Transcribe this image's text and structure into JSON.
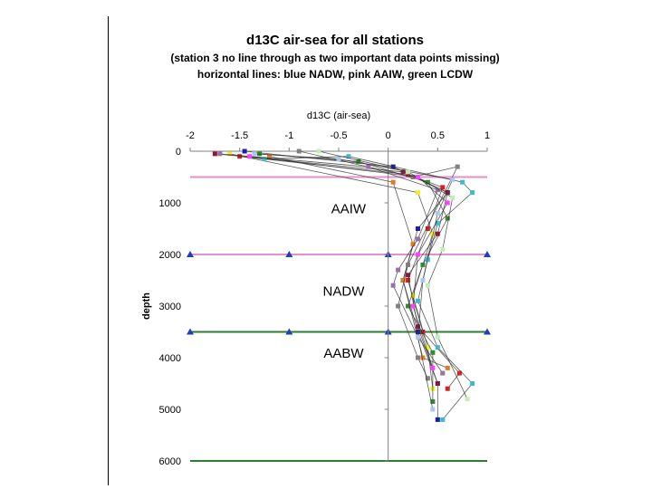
{
  "title": "d13C air-sea for all stations",
  "subtitle_1": "(station 3 no line through as two important data points missing)",
  "subtitle_2": "horizontal lines: blue  NADW, pink AAIW, green LCDW",
  "chart_data": {
    "type": "line",
    "title": "d13C air-sea for all stations",
    "xlabel": "d13C (air-sea)",
    "ylabel": "depth",
    "xlim": [
      -2,
      1
    ],
    "ylim": [
      6000,
      0
    ],
    "x_axis_position": "top",
    "y_inverted": true,
    "grid": false,
    "legend": "none",
    "x_ticks": [
      "-2",
      "-1.5",
      "-1",
      "-0.5",
      "0",
      "0.5",
      "1"
    ],
    "y_ticks": [
      "0",
      "1000",
      "2000",
      "3000",
      "4000",
      "5000",
      "6000"
    ],
    "annotations": [
      {
        "text": "AAIW",
        "x": -0.4,
        "depth": 1200
      },
      {
        "text": "NADW",
        "x": -0.45,
        "depth": 2800
      },
      {
        "text": "AABW",
        "x": -0.45,
        "depth": 4000
      }
    ],
    "reference_lines": [
      {
        "name": "AAIW",
        "depth": 500,
        "color": "#e38fd0",
        "markers": false
      },
      {
        "name": "NADW",
        "depth": 2000,
        "color": "#e38fd0",
        "markers": true,
        "marker_color": "#1f3fbf",
        "marker_x": [
          -2,
          -1,
          0,
          1
        ]
      },
      {
        "name": "LCDW",
        "depth": 3500,
        "color": "#2e7d32",
        "markers": true,
        "marker_color": "#1f3fbf",
        "marker_x": [
          -2,
          -1,
          0,
          1
        ]
      },
      {
        "name": "bottom",
        "depth": 6000,
        "color": "#2e7d32",
        "markers": false
      }
    ],
    "series": [
      {
        "color": "#1b1bb0",
        "points": [
          [
            -1.45,
            0
          ],
          [
            0.05,
            300
          ],
          [
            0.6,
            800
          ],
          [
            0.3,
            1500
          ],
          [
            0.15,
            2500
          ],
          [
            0.3,
            3500
          ],
          [
            0.5,
            4500
          ],
          [
            0.5,
            5200
          ]
        ]
      },
      {
        "color": "#d62020",
        "points": [
          [
            -1.5,
            100
          ],
          [
            0.2,
            450
          ],
          [
            0.55,
            700
          ],
          [
            0.4,
            1500
          ],
          [
            0.2,
            2500
          ],
          [
            0.35,
            3500
          ],
          [
            0.72,
            4300
          ],
          [
            0.6,
            4600
          ]
        ]
      },
      {
        "color": "#f0f020",
        "points": [
          [
            -1.6,
            50
          ],
          [
            0.3,
            800
          ],
          [
            0.45,
            1600
          ],
          [
            0.25,
            2800
          ],
          [
            0.4,
            3800
          ],
          [
            0.45,
            4600
          ]
        ]
      },
      {
        "color": "#2e8b2e",
        "points": [
          [
            -1.3,
            50
          ],
          [
            -0.3,
            200
          ],
          [
            0.4,
            600
          ],
          [
            0.6,
            1300
          ],
          [
            0.35,
            2200
          ],
          [
            0.2,
            3000
          ],
          [
            0.45,
            3900
          ],
          [
            0.45,
            4850
          ]
        ]
      },
      {
        "color": "#e07b20",
        "points": [
          [
            -1.2,
            100
          ],
          [
            0.05,
            600
          ],
          [
            0.25,
            1800
          ],
          [
            0.15,
            2500
          ],
          [
            0.35,
            4000
          ],
          [
            0.6,
            4200
          ]
        ]
      },
      {
        "color": "#808080",
        "points": [
          [
            -0.9,
            0
          ],
          [
            0.25,
            500
          ],
          [
            0.7,
            300
          ],
          [
            0.2,
            2200
          ],
          [
            0.1,
            3000
          ],
          [
            0.3,
            4000
          ],
          [
            0.4,
            4400
          ]
        ]
      },
      {
        "color": "#8b1a3a",
        "points": [
          [
            -1.75,
            50
          ],
          [
            0.15,
            400
          ],
          [
            0.6,
            800
          ],
          [
            0.5,
            1600
          ],
          [
            0.2,
            2400
          ],
          [
            0.3,
            3400
          ],
          [
            0.5,
            4500
          ]
        ]
      },
      {
        "color": "#9b6fa8",
        "points": [
          [
            -1.7,
            50
          ],
          [
            -0.2,
            300
          ],
          [
            0.5,
            750
          ],
          [
            0.3,
            1700
          ],
          [
            0.1,
            2300
          ],
          [
            0.05,
            2600
          ],
          [
            0.3,
            3600
          ],
          [
            0.55,
            4300
          ]
        ]
      },
      {
        "color": "#40b8d0",
        "points": [
          [
            -1.25,
            150
          ],
          [
            -0.4,
            100
          ],
          [
            0.75,
            600
          ],
          [
            0.85,
            800
          ],
          [
            0.5,
            1400
          ],
          [
            0.4,
            2100
          ],
          [
            0.3,
            2900
          ],
          [
            0.5,
            3800
          ],
          [
            0.85,
            4500
          ],
          [
            0.55,
            5200
          ]
        ]
      },
      {
        "color": "#a8c8f0",
        "points": [
          [
            -1.35,
            50
          ],
          [
            -0.5,
            150
          ],
          [
            0.65,
            550
          ],
          [
            0.5,
            1200
          ],
          [
            0.35,
            2500
          ],
          [
            0.3,
            3600
          ],
          [
            0.45,
            5000
          ]
        ]
      },
      {
        "color": "#c0f0b0",
        "points": [
          [
            -0.7,
            0
          ],
          [
            0.2,
            400
          ],
          [
            0.65,
            900
          ],
          [
            0.55,
            1900
          ],
          [
            0.4,
            2600
          ],
          [
            0.5,
            3600
          ],
          [
            0.8,
            4800
          ]
        ]
      },
      {
        "color": "#ff40ff",
        "points": [
          [
            -1.4,
            100
          ],
          [
            0.3,
            500
          ],
          [
            0.6,
            1000
          ],
          [
            0.3,
            2000
          ],
          [
            0.25,
            3000
          ],
          [
            0.45,
            4200
          ]
        ]
      }
    ]
  }
}
